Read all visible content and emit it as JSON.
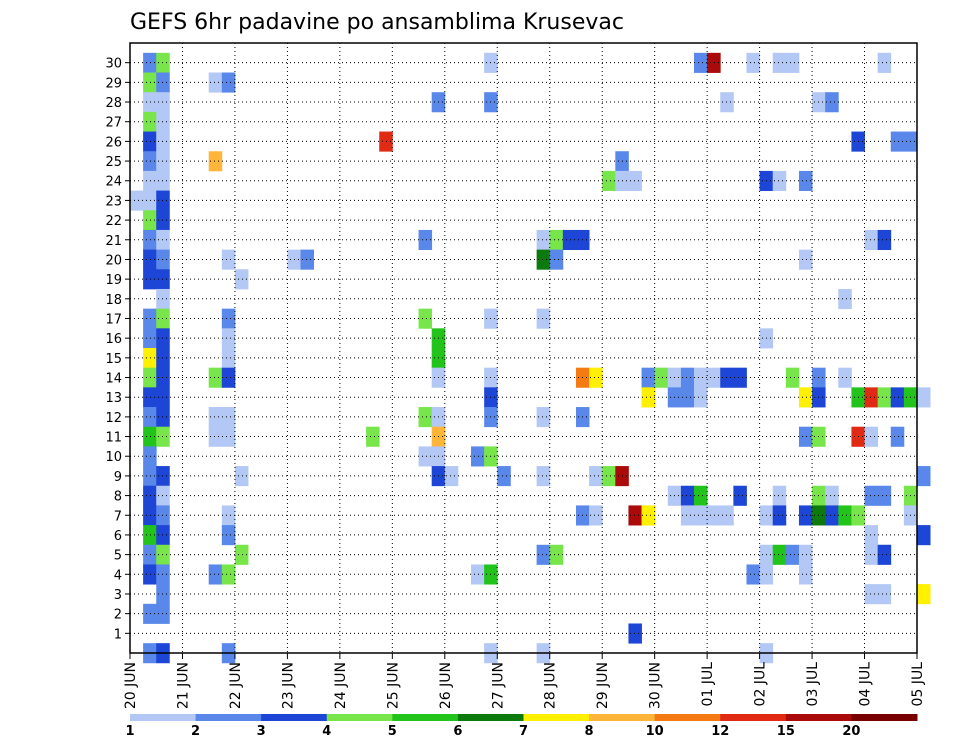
{
  "chart_data": {
    "type": "heatmap",
    "title": "GEFS 6hr padavine po ansamblima Krusevac",
    "xlabel": "",
    "ylabel": "",
    "x_tick_labels": [
      "20 JUN",
      "21 JUN",
      "22 JUN",
      "23 JUN",
      "24 JUN",
      "25 JUN",
      "26 JUN",
      "27 JUN",
      "28 JUN",
      "29 JUN",
      "30 JUN",
      "01 JUL",
      "02 JUL",
      "03 JUL",
      "04 JUL",
      "05 JUL"
    ],
    "y_tick_labels": [
      "1",
      "2",
      "3",
      "4",
      "5",
      "6",
      "7",
      "8",
      "9",
      "10",
      "11",
      "12",
      "13",
      "14",
      "15",
      "16",
      "17",
      "18",
      "19",
      "20",
      "21",
      "22",
      "23",
      "24",
      "25",
      "26",
      "27",
      "28",
      "29",
      "30"
    ],
    "steps_per_day": 4,
    "xlim_steps": [
      0,
      60
    ],
    "ylim": [
      0,
      30
    ],
    "legend": {
      "position": "bottom",
      "labels": [
        "1",
        "2",
        "3",
        "4",
        "5",
        "6",
        "7",
        "8",
        "10",
        "12",
        "15",
        "20"
      ],
      "colors": [
        "#b4c8f5",
        "#5a88ea",
        "#1e46d6",
        "#78e64a",
        "#22c41c",
        "#0c7a0c",
        "#fff000",
        "#ffb43a",
        "#f57a14",
        "#e12a14",
        "#aa0a0a",
        "#780000"
      ]
    },
    "grid": true,
    "cells": [
      [
        1,
        30,
        "#5a88ea"
      ],
      [
        2,
        30,
        "#78e64a"
      ],
      [
        27,
        30,
        "#b4c8f5"
      ],
      [
        43,
        30,
        "#5a88ea"
      ],
      [
        44,
        30,
        "#aa0a0a"
      ],
      [
        47,
        30,
        "#b4c8f5"
      ],
      [
        49,
        30,
        "#b4c8f5"
      ],
      [
        50,
        30,
        "#b4c8f5"
      ],
      [
        57,
        30,
        "#b4c8f5"
      ],
      [
        1,
        29,
        "#78e64a"
      ],
      [
        2,
        29,
        "#5a88ea"
      ],
      [
        6,
        29,
        "#b4c8f5"
      ],
      [
        7,
        29,
        "#5a88ea"
      ],
      [
        1,
        28,
        "#b4c8f5"
      ],
      [
        2,
        28,
        "#b4c8f5"
      ],
      [
        23,
        28,
        "#5a88ea"
      ],
      [
        27,
        28,
        "#5a88ea"
      ],
      [
        45,
        28,
        "#b4c8f5"
      ],
      [
        52,
        28,
        "#b4c8f5"
      ],
      [
        53,
        28,
        "#5a88ea"
      ],
      [
        1,
        27,
        "#78e64a"
      ],
      [
        2,
        27,
        "#b4c8f5"
      ],
      [
        1,
        26,
        "#1e46d6"
      ],
      [
        2,
        26,
        "#b4c8f5"
      ],
      [
        19,
        26,
        "#e12a14"
      ],
      [
        55,
        26,
        "#1e46d6"
      ],
      [
        58,
        26,
        "#5a88ea"
      ],
      [
        59,
        26,
        "#5a88ea"
      ],
      [
        1,
        25,
        "#5a88ea"
      ],
      [
        2,
        25,
        "#b4c8f5"
      ],
      [
        6,
        25,
        "#ffb43a"
      ],
      [
        37,
        25,
        "#5a88ea"
      ],
      [
        1,
        24,
        "#b4c8f5"
      ],
      [
        2,
        24,
        "#b4c8f5"
      ],
      [
        36,
        24,
        "#78e64a"
      ],
      [
        37,
        24,
        "#b4c8f5"
      ],
      [
        38,
        24,
        "#b4c8f5"
      ],
      [
        48,
        24,
        "#1e46d6"
      ],
      [
        49,
        24,
        "#b4c8f5"
      ],
      [
        51,
        24,
        "#5a88ea"
      ],
      [
        0,
        23,
        "#b4c8f5"
      ],
      [
        1,
        23,
        "#b4c8f5"
      ],
      [
        2,
        23,
        "#1e46d6"
      ],
      [
        1,
        22,
        "#78e64a"
      ],
      [
        2,
        22,
        "#1e46d6"
      ],
      [
        1,
        21,
        "#5a88ea"
      ],
      [
        2,
        21,
        "#b4c8f5"
      ],
      [
        22,
        21,
        "#5a88ea"
      ],
      [
        31,
        21,
        "#b4c8f5"
      ],
      [
        32,
        21,
        "#78e64a"
      ],
      [
        33,
        21,
        "#1e46d6"
      ],
      [
        34,
        21,
        "#1e46d6"
      ],
      [
        56,
        21,
        "#b4c8f5"
      ],
      [
        57,
        21,
        "#1e46d6"
      ],
      [
        1,
        20,
        "#1e46d6"
      ],
      [
        2,
        20,
        "#5a88ea"
      ],
      [
        7,
        20,
        "#b4c8f5"
      ],
      [
        12,
        20,
        "#b4c8f5"
      ],
      [
        13,
        20,
        "#5a88ea"
      ],
      [
        31,
        20,
        "#0c7a0c"
      ],
      [
        32,
        20,
        "#5a88ea"
      ],
      [
        51,
        20,
        "#b4c8f5"
      ],
      [
        1,
        19,
        "#1e46d6"
      ],
      [
        2,
        19,
        "#1e46d6"
      ],
      [
        8,
        19,
        "#b4c8f5"
      ],
      [
        2,
        18,
        "#b4c8f5"
      ],
      [
        54,
        18,
        "#b4c8f5"
      ],
      [
        1,
        17,
        "#5a88ea"
      ],
      [
        2,
        17,
        "#78e64a"
      ],
      [
        7,
        17,
        "#5a88ea"
      ],
      [
        22,
        17,
        "#78e64a"
      ],
      [
        27,
        17,
        "#b4c8f5"
      ],
      [
        31,
        17,
        "#b4c8f5"
      ],
      [
        1,
        16,
        "#5a88ea"
      ],
      [
        2,
        16,
        "#1e46d6"
      ],
      [
        7,
        16,
        "#b4c8f5"
      ],
      [
        23,
        16,
        "#22c41c"
      ],
      [
        48,
        16,
        "#b4c8f5"
      ],
      [
        1,
        15,
        "#fff000"
      ],
      [
        2,
        15,
        "#1e46d6"
      ],
      [
        7,
        15,
        "#b4c8f5"
      ],
      [
        23,
        15,
        "#22c41c"
      ],
      [
        1,
        14,
        "#78e64a"
      ],
      [
        2,
        14,
        "#1e46d6"
      ],
      [
        6,
        14,
        "#78e64a"
      ],
      [
        7,
        14,
        "#1e46d6"
      ],
      [
        23,
        14,
        "#b4c8f5"
      ],
      [
        27,
        14,
        "#b4c8f5"
      ],
      [
        34,
        14,
        "#f57a14"
      ],
      [
        35,
        14,
        "#fff000"
      ],
      [
        39,
        14,
        "#5a88ea"
      ],
      [
        40,
        14,
        "#78e64a"
      ],
      [
        41,
        14,
        "#b4c8f5"
      ],
      [
        42,
        14,
        "#5a88ea"
      ],
      [
        43,
        14,
        "#b4c8f5"
      ],
      [
        44,
        14,
        "#b4c8f5"
      ],
      [
        45,
        14,
        "#1e46d6"
      ],
      [
        46,
        14,
        "#1e46d6"
      ],
      [
        50,
        14,
        "#78e64a"
      ],
      [
        52,
        14,
        "#5a88ea"
      ],
      [
        54,
        14,
        "#b4c8f5"
      ],
      [
        1,
        13,
        "#1e46d6"
      ],
      [
        2,
        13,
        "#1e46d6"
      ],
      [
        27,
        13,
        "#1e46d6"
      ],
      [
        39,
        13,
        "#fff000"
      ],
      [
        41,
        13,
        "#5a88ea"
      ],
      [
        42,
        13,
        "#5a88ea"
      ],
      [
        43,
        13,
        "#b4c8f5"
      ],
      [
        51,
        13,
        "#fff000"
      ],
      [
        52,
        13,
        "#1e46d6"
      ],
      [
        55,
        13,
        "#22c41c"
      ],
      [
        56,
        13,
        "#e12a14"
      ],
      [
        57,
        13,
        "#78e64a"
      ],
      [
        58,
        13,
        "#1e46d6"
      ],
      [
        59,
        13,
        "#22c41c"
      ],
      [
        60,
        13,
        "#b4c8f5"
      ],
      [
        1,
        12,
        "#5a88ea"
      ],
      [
        2,
        12,
        "#1e46d6"
      ],
      [
        6,
        12,
        "#b4c8f5"
      ],
      [
        7,
        12,
        "#b4c8f5"
      ],
      [
        22,
        12,
        "#78e64a"
      ],
      [
        23,
        12,
        "#b4c8f5"
      ],
      [
        27,
        12,
        "#5a88ea"
      ],
      [
        31,
        12,
        "#b4c8f5"
      ],
      [
        34,
        12,
        "#5a88ea"
      ],
      [
        1,
        11,
        "#22c41c"
      ],
      [
        2,
        11,
        "#78e64a"
      ],
      [
        6,
        11,
        "#b4c8f5"
      ],
      [
        7,
        11,
        "#b4c8f5"
      ],
      [
        18,
        11,
        "#78e64a"
      ],
      [
        23,
        11,
        "#ffb43a"
      ],
      [
        51,
        11,
        "#5a88ea"
      ],
      [
        52,
        11,
        "#78e64a"
      ],
      [
        55,
        11,
        "#e12a14"
      ],
      [
        56,
        11,
        "#b4c8f5"
      ],
      [
        58,
        11,
        "#5a88ea"
      ],
      [
        1,
        10,
        "#5a88ea"
      ],
      [
        22,
        10,
        "#b4c8f5"
      ],
      [
        23,
        10,
        "#b4c8f5"
      ],
      [
        26,
        10,
        "#5a88ea"
      ],
      [
        27,
        10,
        "#78e64a"
      ],
      [
        1,
        9,
        "#5a88ea"
      ],
      [
        2,
        9,
        "#1e46d6"
      ],
      [
        8,
        9,
        "#b4c8f5"
      ],
      [
        23,
        9,
        "#1e46d6"
      ],
      [
        24,
        9,
        "#b4c8f5"
      ],
      [
        28,
        9,
        "#5a88ea"
      ],
      [
        31,
        9,
        "#b4c8f5"
      ],
      [
        35,
        9,
        "#b4c8f5"
      ],
      [
        36,
        9,
        "#78e64a"
      ],
      [
        37,
        9,
        "#aa0a0a"
      ],
      [
        60,
        9,
        "#5a88ea"
      ],
      [
        1,
        8,
        "#1e46d6"
      ],
      [
        2,
        8,
        "#b4c8f5"
      ],
      [
        41,
        8,
        "#b4c8f5"
      ],
      [
        42,
        8,
        "#1e46d6"
      ],
      [
        43,
        8,
        "#22c41c"
      ],
      [
        46,
        8,
        "#1e46d6"
      ],
      [
        49,
        8,
        "#b4c8f5"
      ],
      [
        52,
        8,
        "#78e64a"
      ],
      [
        53,
        8,
        "#b4c8f5"
      ],
      [
        56,
        8,
        "#5a88ea"
      ],
      [
        57,
        8,
        "#5a88ea"
      ],
      [
        59,
        8,
        "#78e64a"
      ],
      [
        1,
        7,
        "#1e46d6"
      ],
      [
        2,
        7,
        "#5a88ea"
      ],
      [
        7,
        7,
        "#b4c8f5"
      ],
      [
        34,
        7,
        "#5a88ea"
      ],
      [
        35,
        7,
        "#b4c8f5"
      ],
      [
        38,
        7,
        "#aa0a0a"
      ],
      [
        39,
        7,
        "#fff000"
      ],
      [
        42,
        7,
        "#b4c8f5"
      ],
      [
        43,
        7,
        "#b4c8f5"
      ],
      [
        44,
        7,
        "#b4c8f5"
      ],
      [
        45,
        7,
        "#b4c8f5"
      ],
      [
        48,
        7,
        "#b4c8f5"
      ],
      [
        49,
        7,
        "#1e46d6"
      ],
      [
        51,
        7,
        "#1e46d6"
      ],
      [
        52,
        7,
        "#0c7a0c"
      ],
      [
        53,
        7,
        "#1e46d6"
      ],
      [
        54,
        7,
        "#22c41c"
      ],
      [
        55,
        7,
        "#78e64a"
      ],
      [
        59,
        7,
        "#b4c8f5"
      ],
      [
        1,
        6,
        "#22c41c"
      ],
      [
        2,
        6,
        "#1e46d6"
      ],
      [
        7,
        6,
        "#5a88ea"
      ],
      [
        56,
        6,
        "#b4c8f5"
      ],
      [
        60,
        6,
        "#1e46d6"
      ],
      [
        1,
        5,
        "#5a88ea"
      ],
      [
        2,
        5,
        "#78e64a"
      ],
      [
        8,
        5,
        "#78e64a"
      ],
      [
        31,
        5,
        "#5a88ea"
      ],
      [
        32,
        5,
        "#78e64a"
      ],
      [
        48,
        5,
        "#b4c8f5"
      ],
      [
        49,
        5,
        "#22c41c"
      ],
      [
        50,
        5,
        "#5a88ea"
      ],
      [
        51,
        5,
        "#b4c8f5"
      ],
      [
        56,
        5,
        "#b4c8f5"
      ],
      [
        57,
        5,
        "#1e46d6"
      ],
      [
        1,
        4,
        "#1e46d6"
      ],
      [
        2,
        4,
        "#5a88ea"
      ],
      [
        6,
        4,
        "#5a88ea"
      ],
      [
        7,
        4,
        "#78e64a"
      ],
      [
        26,
        4,
        "#b4c8f5"
      ],
      [
        27,
        4,
        "#22c41c"
      ],
      [
        47,
        4,
        "#5a88ea"
      ],
      [
        48,
        4,
        "#b4c8f5"
      ],
      [
        51,
        4,
        "#b4c8f5"
      ],
      [
        2,
        3,
        "#5a88ea"
      ],
      [
        56,
        3,
        "#b4c8f5"
      ],
      [
        57,
        3,
        "#b4c8f5"
      ],
      [
        60,
        3,
        "#fff000"
      ],
      [
        1,
        2,
        "#5a88ea"
      ],
      [
        2,
        2,
        "#5a88ea"
      ],
      [
        38,
        1,
        "#1e46d6"
      ],
      [
        1,
        0,
        "#5a88ea"
      ],
      [
        2,
        0,
        "#1e46d6"
      ],
      [
        7,
        0,
        "#5a88ea"
      ],
      [
        27,
        0,
        "#b4c8f5"
      ],
      [
        31,
        0,
        "#b4c8f5"
      ],
      [
        48,
        0,
        "#b4c8f5"
      ]
    ]
  }
}
